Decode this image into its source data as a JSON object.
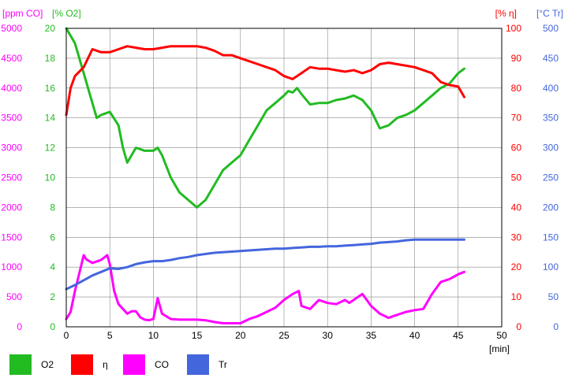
{
  "chart_data": {
    "type": "line",
    "xlabel": "[min]",
    "x_range": [
      0,
      50
    ],
    "x_ticks": [
      0,
      5,
      10,
      15,
      20,
      25,
      30,
      35,
      40,
      45,
      50
    ],
    "grid": true,
    "legend_position": "bottom",
    "axes": [
      {
        "id": "co",
        "label": "[ppm CO]",
        "side": "left",
        "range": [
          0,
          5000
        ],
        "ticks": [
          0,
          500,
          1000,
          1500,
          2000,
          2500,
          3000,
          3500,
          4000,
          4500,
          5000
        ],
        "color": "#ff00ff"
      },
      {
        "id": "o2",
        "label": "[% O2]",
        "side": "left",
        "range": [
          0,
          20
        ],
        "ticks": [
          0,
          2,
          4,
          6,
          8,
          10,
          12,
          14,
          16,
          18,
          20
        ],
        "color": "#22bb22"
      },
      {
        "id": "eta",
        "label": "[% η]",
        "side": "right",
        "range": [
          0,
          100
        ],
        "ticks": [
          0,
          10,
          20,
          30,
          40,
          50,
          60,
          70,
          80,
          90,
          100
        ],
        "color": "#ff0000"
      },
      {
        "id": "tr",
        "label": "[°C Tr]",
        "side": "right",
        "range": [
          0,
          500
        ],
        "ticks": [
          0,
          50,
          100,
          150,
          200,
          250,
          300,
          350,
          400,
          450,
          500
        ],
        "color": "#4466dd"
      }
    ],
    "series": [
      {
        "name": "O2",
        "axis": "o2",
        "color": "#22bb22",
        "x": [
          0,
          1,
          2,
          3,
          3.5,
          4,
          5,
          6,
          6.5,
          7,
          8,
          9,
          10,
          10.5,
          11,
          12,
          13,
          14,
          15,
          16,
          17,
          18,
          19,
          20,
          21,
          22,
          23,
          24,
          25,
          25.5,
          26,
          26.5,
          27,
          28,
          29,
          30,
          31,
          32,
          33,
          34,
          35,
          36,
          37,
          38,
          39,
          40,
          41,
          42,
          43,
          44,
          45,
          45.7
        ],
        "y": [
          20,
          19,
          17,
          15,
          14,
          14.2,
          14.4,
          13.5,
          12,
          11,
          12,
          11.8,
          11.8,
          12,
          11.5,
          10,
          9,
          8.5,
          8,
          8.5,
          9.5,
          10.5,
          11,
          11.5,
          12.5,
          13.5,
          14.5,
          15,
          15.5,
          15.8,
          15.7,
          16,
          15.6,
          14.9,
          15,
          15,
          15.2,
          15.3,
          15.5,
          15.2,
          14.5,
          13.3,
          13.5,
          14,
          14.2,
          14.5,
          15,
          15.5,
          16,
          16.3,
          17,
          17.3
        ]
      },
      {
        "name": "η",
        "axis": "eta",
        "color": "#ff0000",
        "x": [
          0,
          0.5,
          1,
          2,
          3,
          4,
          5,
          6,
          7,
          8,
          9,
          10,
          11,
          12,
          13,
          14,
          15,
          16,
          17,
          18,
          19,
          20,
          21,
          22,
          23,
          24,
          25,
          26,
          27,
          28,
          29,
          30,
          31,
          32,
          33,
          34,
          35,
          36,
          37,
          38,
          39,
          40,
          41,
          42,
          43,
          44,
          45,
          45.7
        ],
        "y": [
          71,
          80,
          84,
          87,
          93,
          92,
          92,
          93,
          94,
          93.5,
          93,
          93,
          93.5,
          94,
          94,
          94,
          94,
          93.5,
          92.5,
          91,
          91,
          90,
          89,
          88,
          87,
          86,
          84,
          83,
          85,
          87,
          86.5,
          86.5,
          86,
          85.5,
          86,
          85,
          86,
          88,
          88.5,
          88,
          87.5,
          87,
          86,
          85,
          82,
          81,
          80.5,
          77
        ]
      },
      {
        "name": "CO",
        "axis": "co",
        "color": "#ff00ff",
        "x": [
          0,
          0.5,
          1,
          1.5,
          2,
          2.3,
          3,
          4,
          4.7,
          5,
          5.5,
          6,
          7,
          7.5,
          8,
          8.5,
          9,
          9.5,
          10,
          10.5,
          11,
          12,
          13,
          14,
          15,
          16,
          17,
          18,
          19,
          20,
          21,
          22,
          23,
          24,
          25,
          26,
          26.7,
          27,
          28,
          29,
          30,
          31,
          32,
          32.5,
          33,
          34,
          35,
          36,
          37,
          38,
          39,
          40,
          41,
          42,
          43,
          44,
          45,
          45.7
        ],
        "y": [
          130,
          250,
          600,
          900,
          1200,
          1130,
          1070,
          1120,
          1200,
          1050,
          600,
          380,
          220,
          260,
          260,
          160,
          120,
          110,
          130,
          480,
          220,
          130,
          120,
          120,
          120,
          110,
          80,
          60,
          60,
          60,
          130,
          180,
          250,
          320,
          450,
          550,
          600,
          350,
          300,
          450,
          400,
          380,
          450,
          400,
          450,
          550,
          350,
          220,
          150,
          200,
          250,
          280,
          300,
          550,
          750,
          800,
          880,
          920
        ]
      },
      {
        "name": "Tr",
        "axis": "tr",
        "color": "#4466dd",
        "x": [
          0,
          1,
          2,
          3,
          4,
          5,
          6,
          7,
          8,
          9,
          10,
          11,
          12,
          13,
          14,
          15,
          16,
          17,
          18,
          19,
          20,
          21,
          22,
          23,
          24,
          25,
          26,
          27,
          28,
          29,
          30,
          31,
          32,
          33,
          34,
          35,
          36,
          37,
          38,
          39,
          40,
          41,
          42,
          43,
          44,
          45,
          45.7
        ],
        "y": [
          63,
          70,
          78,
          86,
          92,
          98,
          97,
          100,
          105,
          108,
          110,
          110,
          112,
          115,
          117,
          120,
          122,
          124,
          125,
          126,
          127,
          128,
          129,
          130,
          131,
          131,
          132,
          133,
          134,
          134,
          135,
          135,
          136,
          137,
          138,
          139,
          141,
          142,
          143,
          145,
          146,
          146,
          146,
          146,
          146,
          146,
          146
        ]
      }
    ]
  }
}
